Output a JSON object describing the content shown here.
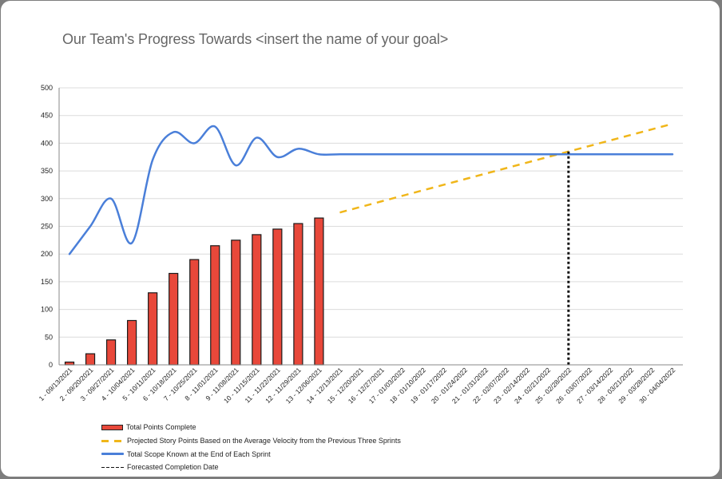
{
  "chart_data": {
    "type": "bar+line",
    "title": "Our Team's Progress Towards <insert the name of your goal>",
    "xlabel": "",
    "ylabel": "",
    "ylim": [
      0,
      500
    ],
    "yticks": [
      0,
      50,
      100,
      150,
      200,
      250,
      300,
      350,
      400,
      450,
      500
    ],
    "grid": true,
    "legend_position": "bottom-left",
    "categories": [
      "1 - 09/13/2021",
      "2 - 09/20/2021",
      "3 - 09/27/2021",
      "4 - 10/04/2021",
      "5 - 10/11/2021",
      "6 - 10/18/2021",
      "7 - 10/25/2021",
      "8 - 11/01/2021",
      "9 - 11/08/2021",
      "10 - 11/15/2021",
      "11 - 11/22/2021",
      "12 - 11/29/2021",
      "13 - 12/06/2021",
      "14 - 12/13/2021",
      "15 - 12/20/2021",
      "16 - 12/27/2021",
      "17 - 01/03/2022",
      "18 - 01/10/2022",
      "19 - 01/17/2022",
      "20 - 01/24/2022",
      "21 - 01/31/2022",
      "22 - 02/07/2022",
      "23 - 02/14/2022",
      "24 - 02/21/2022",
      "25 - 02/28/2022",
      "26 - 03/07/2022",
      "27 - 03/14/2022",
      "28 - 03/21/2022",
      "29 - 03/28/2022",
      "30 - 04/04/2022"
    ],
    "series": [
      {
        "name": "Total Points Complete",
        "type": "bar",
        "color": "#e8483a",
        "values": [
          5,
          20,
          45,
          80,
          130,
          165,
          190,
          215,
          225,
          235,
          245,
          255,
          265,
          null,
          null,
          null,
          null,
          null,
          null,
          null,
          null,
          null,
          null,
          null,
          null,
          null,
          null,
          null,
          null,
          null
        ]
      },
      {
        "name": "Projected Story Points Based on the Average Velocity from the Previous Three Sprints",
        "type": "line-dashed",
        "color": "#f0b61a",
        "values": [
          null,
          null,
          null,
          null,
          null,
          null,
          null,
          null,
          null,
          null,
          null,
          null,
          null,
          275,
          285,
          295,
          305,
          315,
          325,
          335,
          345,
          355,
          365,
          375,
          385,
          395,
          405,
          415,
          425,
          435
        ]
      },
      {
        "name": "Total Scope Known at the End of Each Sprint",
        "type": "line-smooth",
        "color": "#4a7fd9",
        "values": [
          200,
          250,
          300,
          220,
          370,
          420,
          400,
          430,
          360,
          410,
          375,
          390,
          380,
          380,
          380,
          380,
          380,
          380,
          380,
          380,
          380,
          380,
          380,
          380,
          380,
          380,
          380,
          380,
          380,
          380
        ]
      },
      {
        "name": "Forecasted Completion Date",
        "type": "vertical-dotted",
        "color": "#111111",
        "x_category": "25 - 02/28/2022",
        "y_top": 385
      }
    ]
  },
  "legend": {
    "items": [
      {
        "label": "Total Points Complete"
      },
      {
        "label": "Projected Story Points Based on the Average Velocity from the Previous Three Sprints"
      },
      {
        "label": "Total Scope Known at the End of Each Sprint"
      },
      {
        "label": "Forecasted Completion Date"
      }
    ]
  }
}
